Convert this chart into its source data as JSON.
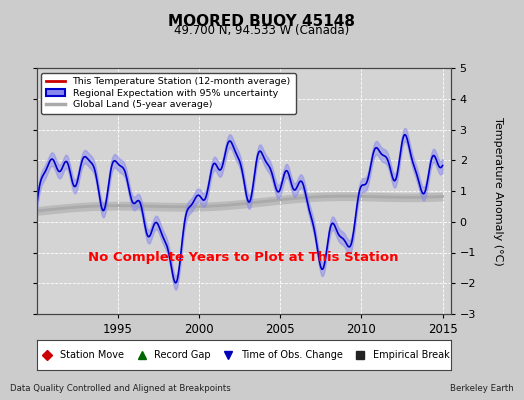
{
  "title": "MOORED BUOY 45148",
  "subtitle": "49.700 N, 94.533 W (Canada)",
  "ylabel": "Temperature Anomaly (°C)",
  "xlabel_left": "Data Quality Controlled and Aligned at Breakpoints",
  "xlabel_right": "Berkeley Earth",
  "no_data_text": "No Complete Years to Plot at This Station",
  "ylim": [
    -3,
    5
  ],
  "xlim_start": 1990.0,
  "xlim_end": 2015.5,
  "xticks": [
    1995,
    2000,
    2005,
    2010,
    2015
  ],
  "yticks": [
    -3,
    -2,
    -1,
    0,
    1,
    2,
    3,
    4,
    5
  ],
  "bg_color": "#cccccc",
  "plot_bg_color": "#d4d4d4",
  "grid_color": "#ffffff",
  "regional_line_color": "#0000cc",
  "regional_fill_color": "#8888ee",
  "station_line_color": "#cc0000",
  "global_line_color": "#aaaaaa",
  "global_fill_color": "#bbbbbb",
  "legend_items_top": [
    {
      "label": "This Temperature Station (12-month average)",
      "color": "#cc0000",
      "lw": 2,
      "type": "line"
    },
    {
      "label": "Regional Expectation with 95% uncertainty",
      "color": "#0000cc",
      "fill": "#8888ee",
      "lw": 2,
      "type": "band"
    },
    {
      "label": "Global Land (5-year average)",
      "color": "#aaaaaa",
      "lw": 3,
      "type": "line"
    }
  ],
  "bottom_legend": [
    {
      "label": "Station Move",
      "marker": "D",
      "color": "#cc0000"
    },
    {
      "label": "Record Gap",
      "marker": "^",
      "color": "#006600"
    },
    {
      "label": "Time of Obs. Change",
      "marker": "v",
      "color": "#0000bb"
    },
    {
      "label": "Empirical Break",
      "marker": "s",
      "color": "#222222"
    }
  ]
}
